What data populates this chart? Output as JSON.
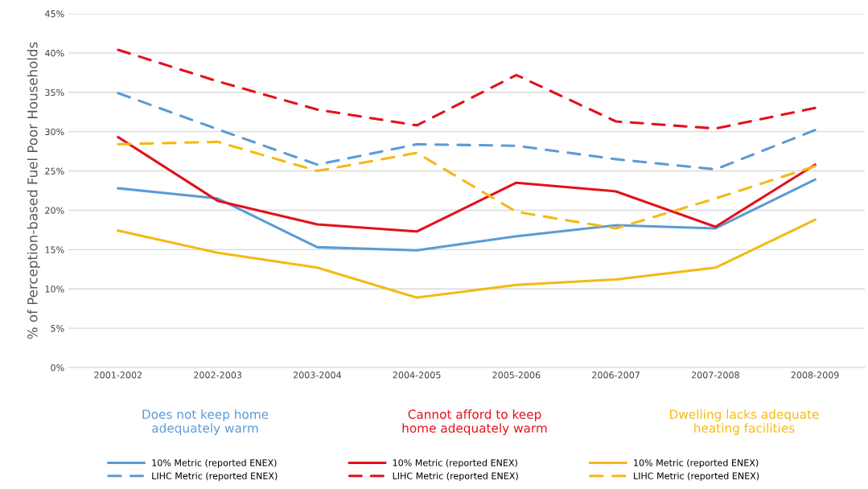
{
  "chart_data": {
    "type": "line",
    "ylabel": "% of Perception-based Fuel Poor Households",
    "categories": [
      "2001-2002",
      "2002-2003",
      "2003-2004",
      "2004-2005",
      "2005-2006",
      "2006-2007",
      "2007-2008",
      "2008-2009"
    ],
    "series": [
      {
        "name": "10% Metric (reported ENEX)",
        "color": "#5b9bd5",
        "line_style": "solid",
        "values": [
          22.8,
          21.5,
          15.3,
          14.9,
          16.7,
          18.1,
          17.7,
          23.9
        ]
      },
      {
        "name": "LIHC Metric (reported ENEX)",
        "color": "#5b9bd5",
        "line_style": "dashed",
        "values": [
          34.9,
          30.3,
          25.8,
          28.4,
          28.2,
          26.5,
          25.2,
          30.2
        ]
      },
      {
        "name": "10% Metric (reported ENEX)",
        "color": "#e3111b",
        "line_style": "solid",
        "values": [
          29.3,
          21.2,
          18.2,
          17.3,
          23.5,
          22.4,
          17.9,
          25.8
        ]
      },
      {
        "name": "LIHC Metric (reported ENEX)",
        "color": "#e3111b",
        "line_style": "dashed",
        "values": [
          40.4,
          36.4,
          32.8,
          30.8,
          37.2,
          31.3,
          30.4,
          33.0
        ]
      },
      {
        "name": "10% Metric (reported ENEX)",
        "color": "#f5b914",
        "line_style": "solid",
        "values": [
          17.4,
          14.6,
          12.7,
          8.9,
          10.5,
          11.2,
          12.7,
          18.8
        ]
      },
      {
        "name": "LIHC Metric (reported ENEX)",
        "color": "#f5b914",
        "line_style": "dashed",
        "values": [
          28.4,
          28.7,
          25.0,
          27.3,
          19.8,
          17.7,
          21.5,
          25.6
        ]
      }
    ],
    "annotations": [
      "Does not keep home\nadequately warm",
      "Cannot afford to keep\nhome adequately warm",
      "Dwelling lacks adequate\nheating facilities"
    ],
    "ylim": [
      0,
      45
    ],
    "yticks": [
      {
        "value": 0,
        "label": "0%"
      },
      {
        "value": 5,
        "label": "5%"
      },
      {
        "value": 10,
        "label": "10%"
      },
      {
        "value": 15,
        "label": "15%"
      },
      {
        "value": 20,
        "label": "20%"
      },
      {
        "value": 25,
        "label": "25%"
      },
      {
        "value": 30,
        "label": "30%"
      },
      {
        "value": 35,
        "label": "35%"
      },
      {
        "value": 40,
        "label": "40%"
      },
      {
        "value": 45,
        "label": "45%"
      }
    ],
    "grid": "y",
    "legend": "bottom",
    "marker": "none"
  }
}
